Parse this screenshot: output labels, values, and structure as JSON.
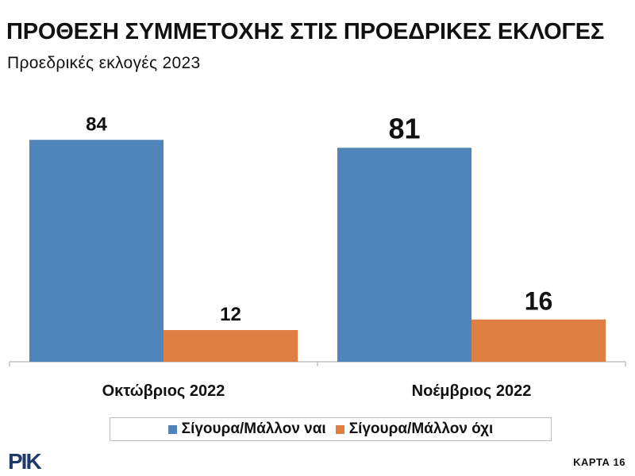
{
  "title": "ΠΡΟΘΕΣΗ ΣΥΜΜΕΤΟΧΗΣ ΣΤΙΣ ΠΡΟΕΔΡΙΚΕΣ ΕΚΛΟΓΕΣ",
  "subtitle": "Προεδρικές εκλογές 2023",
  "footer": {
    "logo_text": "RIK",
    "page_label": "ΚΑΡΤΑ 16"
  },
  "chart_data": {
    "type": "bar",
    "categories": [
      "Οκτώβριος 2022",
      "Νοέμβριος 2022"
    ],
    "series": [
      {
        "name": "Σίγουρα/Μάλλον ναι",
        "color": "#4f85b8",
        "values": [
          84,
          81
        ]
      },
      {
        "name": "Σίγουρα/Μάλλον όχι",
        "color": "#de7e42",
        "values": [
          12,
          16
        ]
      }
    ],
    "ylim": [
      0,
      100
    ],
    "grid": false,
    "legend_position": "bottom",
    "data_labels": true
  }
}
